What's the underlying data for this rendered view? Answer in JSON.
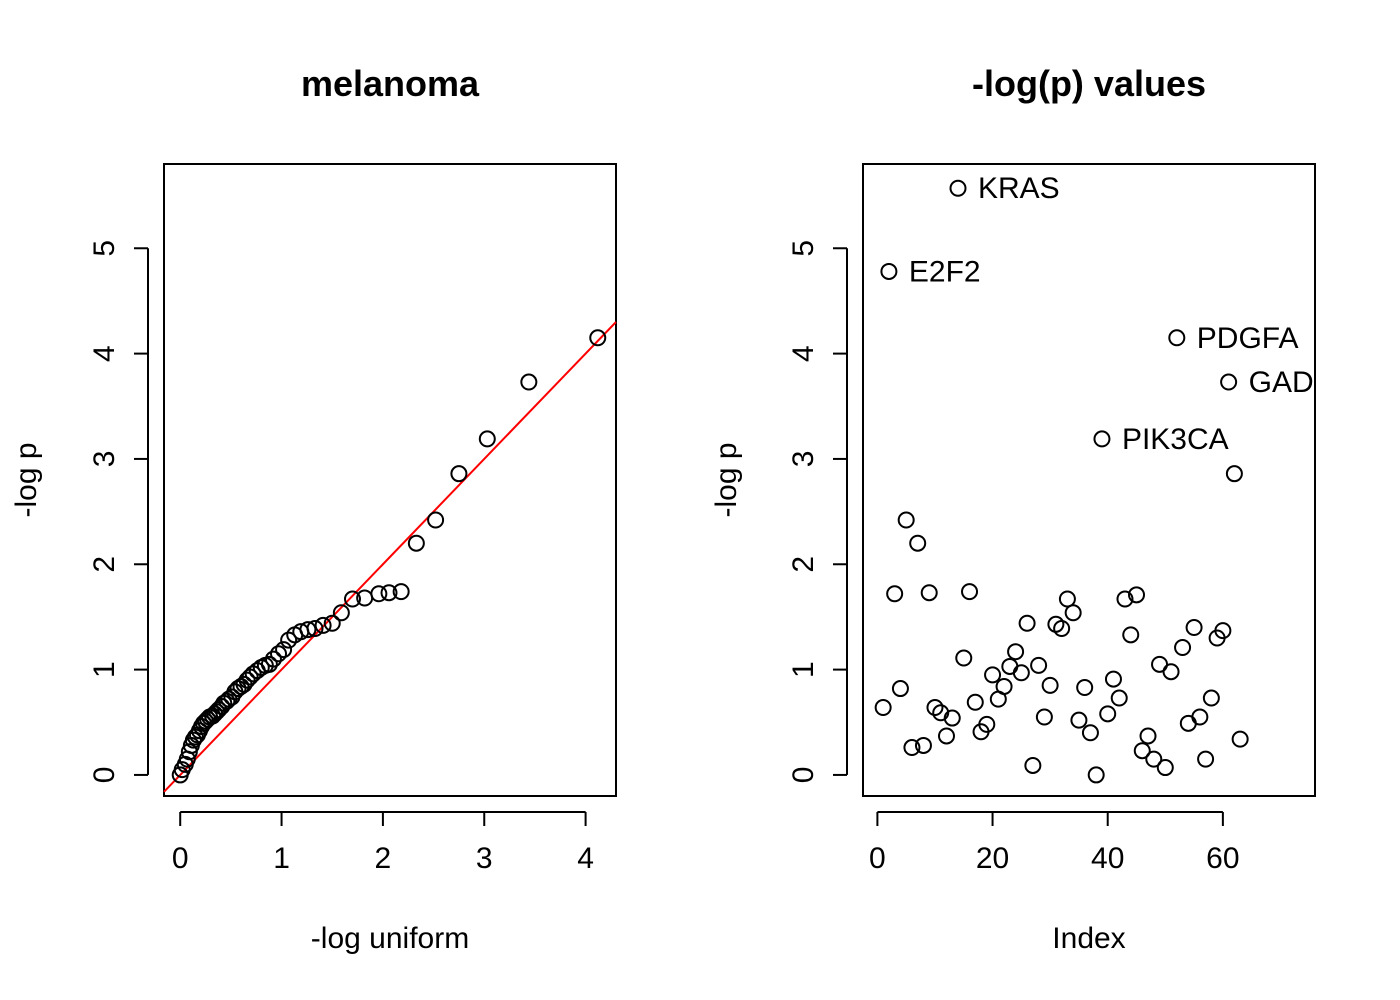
{
  "chart_data": [
    {
      "type": "scatter",
      "title": "melanoma",
      "xlabel": "-log uniform",
      "ylabel": "-log p",
      "xlim": [
        -0.16,
        4.3
      ],
      "ylim": [
        -0.2,
        5.8
      ],
      "xticks": [
        0,
        1,
        2,
        3,
        4
      ],
      "yticks": [
        0,
        1,
        2,
        3,
        4,
        5
      ],
      "grid": false,
      "reference_line": {
        "intercept": 0,
        "slope": 1,
        "color": "#ff0000"
      },
      "points": {
        "x": [
          0.0,
          0.02,
          0.05,
          0.07,
          0.09,
          0.11,
          0.13,
          0.15,
          0.17,
          0.19,
          0.21,
          0.23,
          0.25,
          0.27,
          0.29,
          0.32,
          0.34,
          0.36,
          0.38,
          0.41,
          0.43,
          0.46,
          0.48,
          0.51,
          0.54,
          0.57,
          0.6,
          0.63,
          0.66,
          0.69,
          0.72,
          0.76,
          0.8,
          0.84,
          0.88,
          0.92,
          0.97,
          1.02,
          1.07,
          1.13,
          1.19,
          1.26,
          1.33,
          1.41,
          1.5,
          1.59,
          1.7,
          1.82,
          1.96,
          2.06,
          2.18,
          2.33,
          2.52,
          2.75,
          3.03,
          3.44,
          4.12
        ],
        "y": [
          0.0,
          0.05,
          0.1,
          0.15,
          0.22,
          0.28,
          0.33,
          0.36,
          0.38,
          0.42,
          0.46,
          0.49,
          0.51,
          0.53,
          0.55,
          0.56,
          0.58,
          0.6,
          0.62,
          0.65,
          0.68,
          0.7,
          0.72,
          0.74,
          0.79,
          0.82,
          0.84,
          0.86,
          0.9,
          0.93,
          0.96,
          0.99,
          1.02,
          1.04,
          1.05,
          1.1,
          1.15,
          1.19,
          1.28,
          1.33,
          1.36,
          1.38,
          1.39,
          1.42,
          1.44,
          1.54,
          1.67,
          1.68,
          1.72,
          1.73,
          1.74,
          2.2,
          2.42,
          2.86,
          3.19,
          3.73,
          4.15
        ]
      }
    },
    {
      "type": "scatter",
      "title": "-log(p) values",
      "xlabel": "Index",
      "ylabel": "-log p",
      "xlim": [
        -2.5,
        76
      ],
      "ylim": [
        -0.2,
        5.8
      ],
      "xticks": [
        0,
        20,
        40,
        60
      ],
      "yticks": [
        0,
        1,
        2,
        3,
        4,
        5
      ],
      "grid": false,
      "points": {
        "x": [
          1,
          2,
          3,
          4,
          5,
          6,
          7,
          8,
          9,
          10,
          11,
          12,
          13,
          14,
          15,
          16,
          17,
          18,
          19,
          20,
          21,
          22,
          23,
          24,
          25,
          26,
          27,
          28,
          29,
          30,
          31,
          32,
          33,
          34,
          35,
          36,
          37,
          38,
          39,
          40,
          41,
          42,
          43,
          44,
          45,
          46,
          47,
          48,
          49,
          50,
          51,
          52,
          53,
          54,
          55,
          56,
          57,
          58,
          59,
          60,
          61,
          62,
          63
        ],
        "y": [
          0.64,
          4.78,
          1.72,
          0.82,
          2.42,
          0.26,
          2.2,
          0.28,
          1.73,
          0.64,
          0.59,
          0.37,
          0.54,
          5.57,
          1.11,
          1.74,
          0.69,
          0.41,
          0.48,
          0.95,
          0.72,
          0.84,
          1.03,
          1.17,
          0.97,
          1.44,
          0.09,
          1.04,
          0.55,
          0.85,
          1.43,
          1.39,
          1.67,
          1.54,
          0.52,
          0.83,
          0.4,
          0.0,
          3.19,
          0.58,
          0.91,
          0.73,
          1.67,
          1.33,
          1.71,
          0.23,
          0.37,
          0.15,
          1.05,
          0.07,
          0.98,
          4.15,
          1.21,
          0.49,
          1.4,
          0.55,
          0.15,
          0.73,
          1.3,
          1.37,
          3.73,
          2.86,
          0.34
        ]
      },
      "annotations": [
        {
          "index": 14,
          "label": "KRAS"
        },
        {
          "index": 2,
          "label": "E2F2"
        },
        {
          "index": 52,
          "label": "PDGFA"
        },
        {
          "index": 61,
          "label": "GAD"
        },
        {
          "index": 39,
          "label": "PIK3CA"
        }
      ]
    }
  ]
}
